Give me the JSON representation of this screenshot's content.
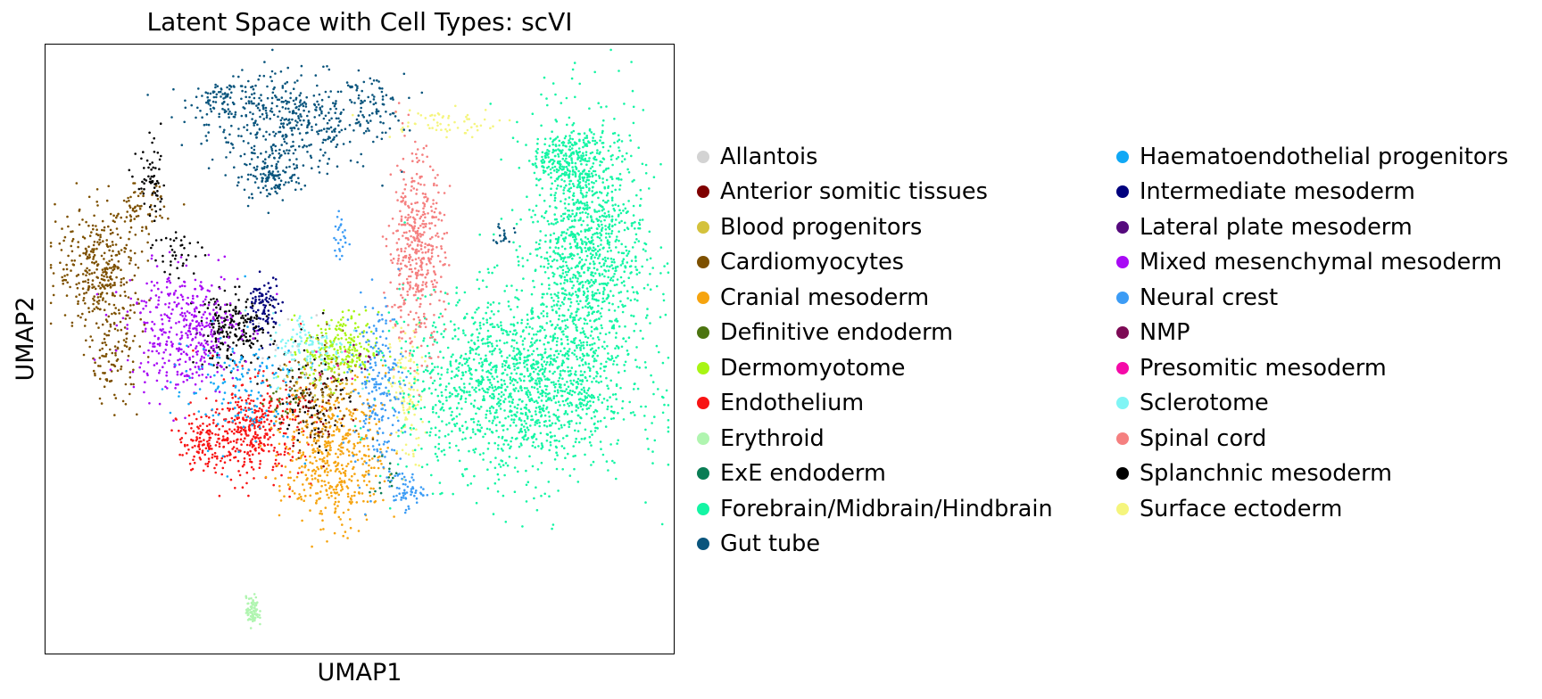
{
  "chart_data": {
    "type": "scatter",
    "title": "Latent Space with Cell Types: scVI",
    "xlabel": "UMAP1",
    "ylabel": "UMAP2",
    "xlim": [
      0,
      100
    ],
    "ylim": [
      0,
      100
    ],
    "axis_ticks": false,
    "grid": false,
    "legend_position": "right",
    "legend_columns": 2,
    "categories": [
      {
        "name": "Allantois",
        "color": "#d3d3d3"
      },
      {
        "name": "Anterior somitic tissues",
        "color": "#7f0000"
      },
      {
        "name": "Blood progenitors",
        "color": "#d4c23c"
      },
      {
        "name": "Cardiomyocytes",
        "color": "#7d5000"
      },
      {
        "name": "Cranial mesoderm",
        "color": "#f6a40f"
      },
      {
        "name": "Definitive endoderm",
        "color": "#4c7410"
      },
      {
        "name": "Dermomyotome",
        "color": "#a8f514"
      },
      {
        "name": "Endothelium",
        "color": "#f81414"
      },
      {
        "name": "Erythroid",
        "color": "#b0f5b0"
      },
      {
        "name": "ExE endoderm",
        "color": "#0a7d55"
      },
      {
        "name": "Forebrain/Midbrain/Hindbrain",
        "color": "#14f5a4"
      },
      {
        "name": "Gut tube",
        "color": "#0a557d"
      },
      {
        "name": "Haematoendothelial progenitors",
        "color": "#10a8f5"
      },
      {
        "name": "Intermediate mesoderm",
        "color": "#00007d"
      },
      {
        "name": "Lateral plate mesoderm",
        "color": "#550a7d"
      },
      {
        "name": "Mixed mesenchymal mesoderm",
        "color": "#a80af5"
      },
      {
        "name": "Neural crest",
        "color": "#3c9cf5"
      },
      {
        "name": "NMP",
        "color": "#7d0a55"
      },
      {
        "name": "Presomitic mesoderm",
        "color": "#f50aa8"
      },
      {
        "name": "Sclerotome",
        "color": "#80f5f5"
      },
      {
        "name": "Spinal cord",
        "color": "#f58080"
      },
      {
        "name": "Splanchnic mesoderm",
        "color": "#000000"
      },
      {
        "name": "Surface ectoderm",
        "color": "#f5f57d"
      }
    ],
    "clusters": [
      {
        "cell_type": "Gut tube",
        "x": 39,
        "y": 87,
        "sx": 6.5,
        "sy": 4,
        "n": 420
      },
      {
        "cell_type": "Gut tube",
        "x": 29,
        "y": 91,
        "sx": 3,
        "sy": 1.5,
        "n": 90
      },
      {
        "cell_type": "Gut tube",
        "x": 52,
        "y": 90,
        "sx": 2.5,
        "sy": 2.5,
        "n": 70
      },
      {
        "cell_type": "Gut tube",
        "x": 36,
        "y": 78,
        "sx": 2.5,
        "sy": 2,
        "n": 120
      },
      {
        "cell_type": "Gut tube",
        "x": 73,
        "y": 69,
        "sx": 0.7,
        "sy": 1,
        "n": 18
      },
      {
        "cell_type": "Surface ectoderm",
        "x": 62,
        "y": 87,
        "sx": 5,
        "sy": 1.2,
        "n": 60
      },
      {
        "cell_type": "Surface ectoderm",
        "x": 57.5,
        "y": 42,
        "sx": 1.3,
        "sy": 6,
        "n": 120
      },
      {
        "cell_type": "Forebrain/Midbrain/Hindbrain",
        "x": 86,
        "y": 67,
        "sx": 4.5,
        "sy": 11,
        "n": 1200
      },
      {
        "cell_type": "Forebrain/Midbrain/Hindbrain",
        "x": 75,
        "y": 44,
        "sx": 9,
        "sy": 7.5,
        "n": 1500
      },
      {
        "cell_type": "Forebrain/Midbrain/Hindbrain",
        "x": 83,
        "y": 81,
        "sx": 3,
        "sy": 2,
        "n": 200
      },
      {
        "cell_type": "Spinal cord",
        "x": 59,
        "y": 66,
        "sx": 2.2,
        "sy": 8,
        "n": 450
      },
      {
        "cell_type": "Cardiomyocytes",
        "x": 9,
        "y": 63,
        "sx": 3.5,
        "sy": 5,
        "n": 350
      },
      {
        "cell_type": "Cardiomyocytes",
        "x": 11,
        "y": 49,
        "sx": 2,
        "sy": 4,
        "n": 100
      },
      {
        "cell_type": "Cardiomyocytes",
        "x": 15,
        "y": 73,
        "sx": 2,
        "sy": 2,
        "n": 60
      },
      {
        "cell_type": "Splanchnic mesoderm",
        "x": 17,
        "y": 77,
        "sx": 1.2,
        "sy": 3,
        "n": 60
      },
      {
        "cell_type": "Splanchnic mesoderm",
        "x": 30,
        "y": 53,
        "sx": 3,
        "sy": 3,
        "n": 200
      },
      {
        "cell_type": "Splanchnic mesoderm",
        "x": 21,
        "y": 66,
        "sx": 2,
        "sy": 2,
        "n": 40
      },
      {
        "cell_type": "Splanchnic mesoderm",
        "x": 43,
        "y": 43,
        "sx": 3,
        "sy": 5,
        "n": 80
      },
      {
        "cell_type": "Mixed mesenchymal mesoderm",
        "x": 22,
        "y": 53,
        "sx": 4.5,
        "sy": 5,
        "n": 400
      },
      {
        "cell_type": "Intermediate mesoderm",
        "x": 35,
        "y": 57,
        "sx": 1.3,
        "sy": 2.5,
        "n": 90
      },
      {
        "cell_type": "Endothelium",
        "x": 33,
        "y": 37,
        "sx": 4,
        "sy": 4,
        "n": 400
      },
      {
        "cell_type": "Endothelium",
        "x": 25,
        "y": 34,
        "sx": 2,
        "sy": 2,
        "n": 100
      },
      {
        "cell_type": "Cranial mesoderm",
        "x": 46,
        "y": 33,
        "sx": 4,
        "sy": 6,
        "n": 500
      },
      {
        "cell_type": "Cardiomyocytes",
        "x": 43,
        "y": 42,
        "sx": 3,
        "sy": 5,
        "n": 120
      },
      {
        "cell_type": "Dermomyotome",
        "x": 47,
        "y": 50,
        "sx": 3,
        "sy": 3,
        "n": 220
      },
      {
        "cell_type": "Sclerotome",
        "x": 42,
        "y": 50,
        "sx": 3,
        "sy": 3,
        "n": 130
      },
      {
        "cell_type": "Neural crest",
        "x": 53,
        "y": 44,
        "sx": 2,
        "sy": 7,
        "n": 200
      },
      {
        "cell_type": "Neural crest",
        "x": 57,
        "y": 27,
        "sx": 1.5,
        "sy": 1.5,
        "n": 60
      },
      {
        "cell_type": "Neural crest",
        "x": 47,
        "y": 68,
        "sx": 0.5,
        "sy": 2,
        "n": 25
      },
      {
        "cell_type": "Haematoendothelial progenitors",
        "x": 30,
        "y": 44,
        "sx": 5,
        "sy": 5,
        "n": 150
      },
      {
        "cell_type": "Erythroid",
        "x": 33,
        "y": 7,
        "sx": 0.5,
        "sy": 1.2,
        "n": 80
      },
      {
        "cell_type": "Blood progenitors",
        "x": 44,
        "y": 45,
        "sx": 3,
        "sy": 3,
        "n": 40
      },
      {
        "cell_type": "Definitive endoderm",
        "x": 38,
        "y": 42,
        "sx": 2,
        "sy": 2,
        "n": 20
      },
      {
        "cell_type": "Anterior somitic tissues",
        "x": 44,
        "y": 40,
        "sx": 3,
        "sy": 3,
        "n": 30
      },
      {
        "cell_type": "Lateral plate mesoderm",
        "x": 28,
        "y": 53,
        "sx": 2,
        "sy": 2,
        "n": 15
      },
      {
        "cell_type": "ExE endoderm",
        "x": 54,
        "y": 30,
        "sx": 1.5,
        "sy": 2,
        "n": 15
      },
      {
        "cell_type": "Allantois",
        "x": 40,
        "y": 50,
        "sx": 3,
        "sy": 3,
        "n": 10
      },
      {
        "cell_type": "NMP",
        "x": 50,
        "y": 48,
        "sx": 2,
        "sy": 2,
        "n": 10
      },
      {
        "cell_type": "Presomitic mesoderm",
        "x": 46,
        "y": 47,
        "sx": 2,
        "sy": 2,
        "n": 6
      }
    ]
  }
}
